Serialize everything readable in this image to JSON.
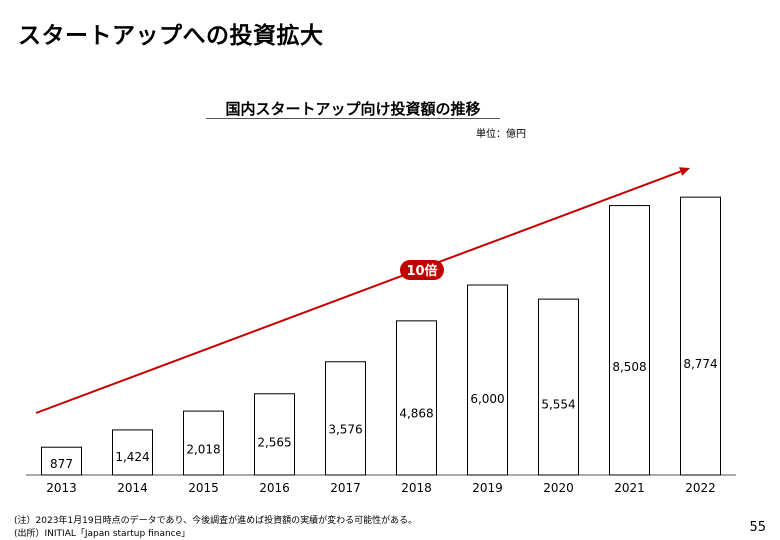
{
  "slide": {
    "title": "スタートアップへの投資拡大",
    "page_number": "55"
  },
  "footnotes": {
    "note": "(注）2023年1月19日時点のデータであり、今後調査が進めば投資額の実績が変わる可能性がある。",
    "source": "(出所）INITIAL「Japan startup finance」"
  },
  "chart_data": {
    "type": "bar",
    "title": "国内スタートアップ向け投資額の推移",
    "unit": "単位：億円",
    "categories": [
      "2013",
      "2014",
      "2015",
      "2016",
      "2017",
      "2018",
      "2019",
      "2020",
      "2021",
      "2022"
    ],
    "values": [
      877,
      1424,
      2018,
      2565,
      3576,
      4868,
      6000,
      5554,
      8508,
      8774
    ],
    "value_labels": [
      "877",
      "1,424",
      "2,018",
      "2,565",
      "3,576",
      "4,868",
      "6,000",
      "5,554",
      "8,508",
      "8,774"
    ],
    "xlabel": "",
    "ylabel": "",
    "ylim": [
      0,
      9000
    ],
    "grid": false,
    "bar_fill": "#ffffff",
    "bar_stroke": "#000000",
    "annotation": {
      "label": "10倍",
      "color": "#c00000"
    }
  }
}
